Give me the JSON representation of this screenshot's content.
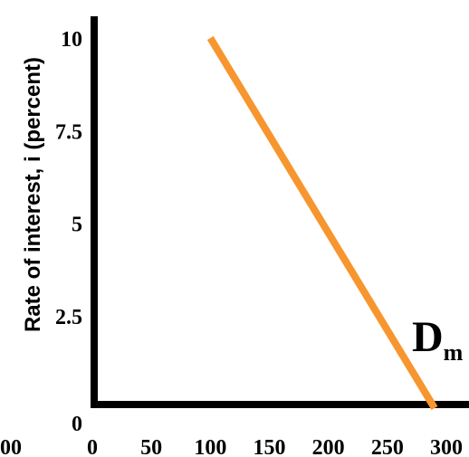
{
  "chart_data": {
    "type": "line",
    "title": "",
    "xlabel": "",
    "ylabel": "Rate of interest, i (percent)",
    "x_ticks": [
      "0",
      "50",
      "100",
      "150",
      "200",
      "250",
      "300"
    ],
    "x_tick_values": [
      0,
      50,
      100,
      150,
      200,
      250,
      300
    ],
    "left_clipped_label": "00",
    "y_ticks": [
      "0",
      "2.5",
      "5",
      "7.5",
      "10"
    ],
    "y_tick_values": [
      0,
      2.5,
      5,
      7.5,
      10
    ],
    "xlim": [
      0,
      300
    ],
    "ylim": [
      0,
      10
    ],
    "grid": false,
    "series": [
      {
        "name": "D",
        "name_subscript": "m",
        "color": "#F7962F",
        "points": [
          {
            "x": 100,
            "y": 10
          },
          {
            "x": 290,
            "y": 0
          }
        ]
      }
    ],
    "axis_color": "#000000"
  }
}
